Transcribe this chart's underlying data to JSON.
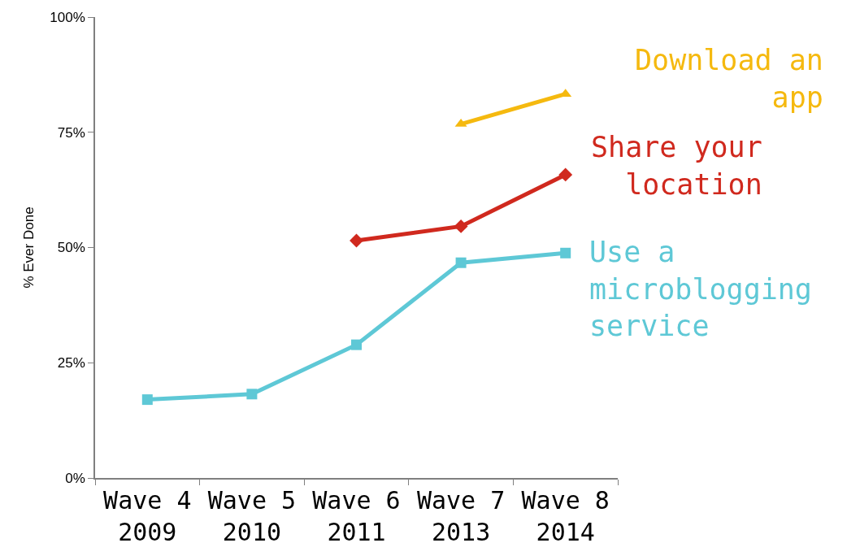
{
  "chart_data": {
    "type": "line",
    "ylabel": "% Ever Done",
    "categories": [
      "Wave 4\n2009",
      "Wave 5\n2010",
      "Wave 6\n2011",
      "Wave 7\n2013",
      "Wave 8\n2014"
    ],
    "series": [
      {
        "name": "Download an\napp",
        "color": "#f5b90f",
        "marker": "triangle",
        "values": [
          null,
          null,
          null,
          76.8,
          83.3
        ]
      },
      {
        "name": "Share your\nlocation",
        "color": "#d0291e",
        "marker": "diamond",
        "values": [
          null,
          null,
          51.5,
          54.6,
          65.8
        ]
      },
      {
        "name": "Use a\nmicroblogging\nservice",
        "color": "#5ec8d6",
        "marker": "square",
        "values": [
          17.0,
          18.2,
          28.9,
          46.7,
          48.8
        ]
      }
    ],
    "ylim": [
      0,
      100
    ],
    "yticks": [
      {
        "value": 0,
        "label": "0%"
      },
      {
        "value": 25,
        "label": "25%"
      },
      {
        "value": 50,
        "label": "50%"
      },
      {
        "value": 75,
        "label": "75%"
      },
      {
        "value": 100,
        "label": "100%"
      }
    ],
    "legend": false,
    "line_style": "solid"
  }
}
